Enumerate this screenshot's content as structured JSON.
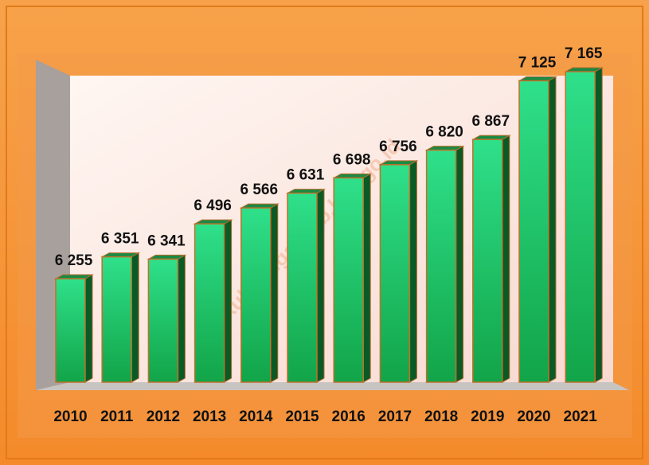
{
  "chart_data": {
    "type": "bar",
    "categories": [
      "2010",
      "2011",
      "2012",
      "2013",
      "2014",
      "2015",
      "2016",
      "2017",
      "2018",
      "2019",
      "2020",
      "2021"
    ],
    "values": [
      6255,
      6351,
      6341,
      6496,
      6566,
      6631,
      6698,
      6756,
      6820,
      6867,
      7125,
      7165
    ],
    "value_labels": [
      "6 255",
      "6 351",
      "6 341",
      "6 496",
      "6 566",
      "6 631",
      "6 698",
      "6 756",
      "6 820",
      "6 867",
      "7 125",
      "7 165"
    ],
    "color": "#22c065",
    "ylim": [
      5800,
      7200
    ],
    "watermark": "ngkulutengahkab.bps.go.id"
  }
}
